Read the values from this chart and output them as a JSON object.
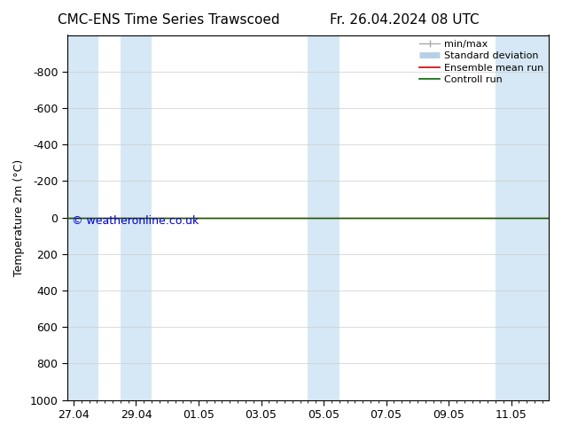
{
  "title_left": "CMC-ENS Time Series Trawscoed",
  "title_right": "Fr. 26.04.2024 08 UTC",
  "ylabel": "Temperature 2m (°C)",
  "watermark": "© weatheronline.co.uk",
  "watermark_color": "#0000cc",
  "ylim_bottom": 1000,
  "ylim_top": -1000,
  "yticks": [
    -800,
    -600,
    -400,
    -200,
    0,
    200,
    400,
    600,
    800,
    1000
  ],
  "xtick_labels": [
    "27.04",
    "29.04",
    "01.05",
    "03.05",
    "05.05",
    "07.05",
    "09.05",
    "11.05"
  ],
  "xtick_positions": [
    0,
    2,
    4,
    6,
    8,
    10,
    12,
    14
  ],
  "xlim_left": -0.2,
  "xlim_right": 15.2,
  "background_color": "#ffffff",
  "plot_bg_color": "#ffffff",
  "shaded_bands": [
    {
      "x_start": -0.2,
      "x_end": 0.8
    },
    {
      "x_start": 1.5,
      "x_end": 2.5
    },
    {
      "x_start": 7.5,
      "x_end": 8.5
    },
    {
      "x_start": 13.5,
      "x_end": 15.2
    }
  ],
  "shaded_color": "#d6e8f5",
  "control_run_color": "#006600",
  "ensemble_mean_color": "#cc0000",
  "spine_color": "#000000",
  "tick_color": "#000000",
  "font_size": 9,
  "title_font_size": 11,
  "legend_fontsize": 8
}
